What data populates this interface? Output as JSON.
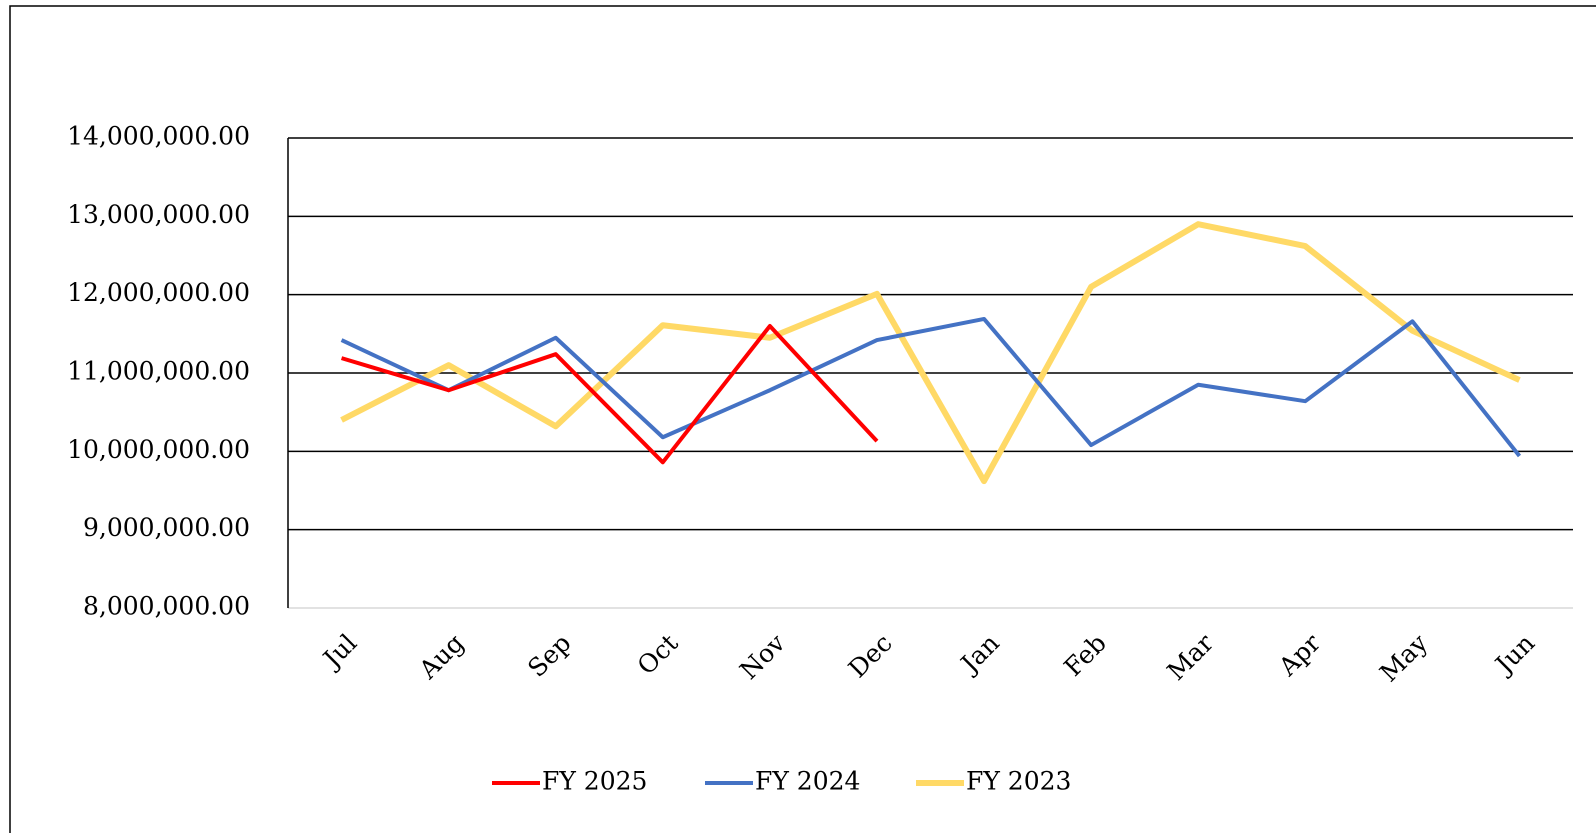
{
  "chart_data": {
    "type": "line",
    "categories": [
      "Jul",
      "Aug",
      "Sep",
      "Oct",
      "Nov",
      "Dec",
      "Jan",
      "Feb",
      "Mar",
      "Apr",
      "May",
      "Jun"
    ],
    "series": [
      {
        "name": "FY 2025",
        "color": "#ff0000",
        "values": [
          11190000,
          10780000,
          11240000,
          9860000,
          11600000,
          10130000,
          null,
          null,
          null,
          null,
          null,
          null
        ]
      },
      {
        "name": "FY 2024",
        "color": "#4472c4",
        "values": [
          11420000,
          10780000,
          11450000,
          10180000,
          10780000,
          11420000,
          11690000,
          10080000,
          10850000,
          10640000,
          11660000,
          9940000
        ]
      },
      {
        "name": "FY 2023",
        "color": "#ffd966",
        "values": [
          10400000,
          11100000,
          10320000,
          11610000,
          11450000,
          12010000,
          9620000,
          12100000,
          12900000,
          12620000,
          11540000,
          10910000
        ]
      }
    ],
    "ylim": [
      8000000,
      14000000
    ],
    "yticks": [
      {
        "value": 8000000,
        "label": "8,000,000.00"
      },
      {
        "value": 9000000,
        "label": "9,000,000.00"
      },
      {
        "value": 10000000,
        "label": "10,000,000.00"
      },
      {
        "value": 11000000,
        "label": "11,000,000.00"
      },
      {
        "value": 12000000,
        "label": "12,000,000.00"
      },
      {
        "value": 13000000,
        "label": "13,000,000.00"
      },
      {
        "value": 14000000,
        "label": "14,000,000.00"
      }
    ],
    "grid": true,
    "legend": "bottom"
  }
}
